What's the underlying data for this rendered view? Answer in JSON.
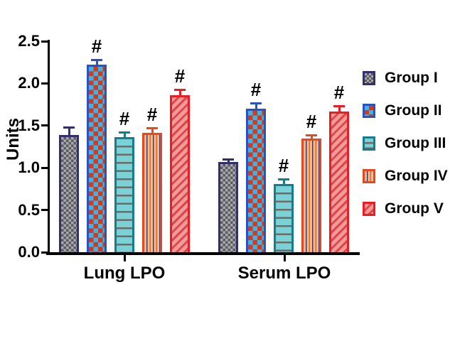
{
  "chart_data": {
    "type": "bar",
    "ylabel": "Units",
    "categories": [
      "Lung LPO",
      "Serum LPO"
    ],
    "series": [
      {
        "name": "Group I",
        "values": [
          1.39,
          1.07
        ],
        "errors": [
          0.09,
          0.03
        ],
        "sig": [
          "",
          ""
        ],
        "pattern": "fine-gray-checker",
        "border_color": "#32306a",
        "fill_colors": [
          "#a8a8a8",
          "#5a5a64"
        ]
      },
      {
        "name": "Group II",
        "values": [
          2.22,
          1.7
        ],
        "errors": [
          0.06,
          0.07
        ],
        "sig": [
          "#",
          "#"
        ],
        "pattern": "red-cyan-checker",
        "border_color": "#2a52c0",
        "fill_colors": [
          "#3cb4e4",
          "#d23920"
        ]
      },
      {
        "name": "Group III",
        "values": [
          1.36,
          0.81
        ],
        "errors": [
          0.06,
          0.06
        ],
        "sig": [
          "#",
          "#"
        ],
        "pattern": "horizontal-lines",
        "border_color": "#177c8c",
        "fill_colors": [
          "#7ad2d6",
          "#6e6a66"
        ]
      },
      {
        "name": "Group IV",
        "values": [
          1.41,
          1.35
        ],
        "errors": [
          0.06,
          0.04
        ],
        "sig": [
          "#",
          "#"
        ],
        "pattern": "vertical-stripes",
        "border_color": "#e8481c",
        "fill_colors": [
          "#f7bb8e",
          "#e4622a",
          "#3c3c74"
        ]
      },
      {
        "name": "Group V",
        "values": [
          1.86,
          1.67
        ],
        "errors": [
          0.07,
          0.06
        ],
        "sig": [
          "#",
          "#"
        ],
        "pattern": "diagonal-stripes",
        "border_color": "#ea1c24",
        "fill_colors": [
          "#f39b9b",
          "#dc4848"
        ]
      }
    ],
    "ylim": [
      0.0,
      2.5
    ],
    "yticks": [
      "0.0",
      "0.5",
      "1.0",
      "1.5",
      "2.0",
      "2.5"
    ],
    "grid": false,
    "legend_position": "right",
    "significance_marker": "#",
    "error_bars": "upper one-sided, colored per group"
  }
}
